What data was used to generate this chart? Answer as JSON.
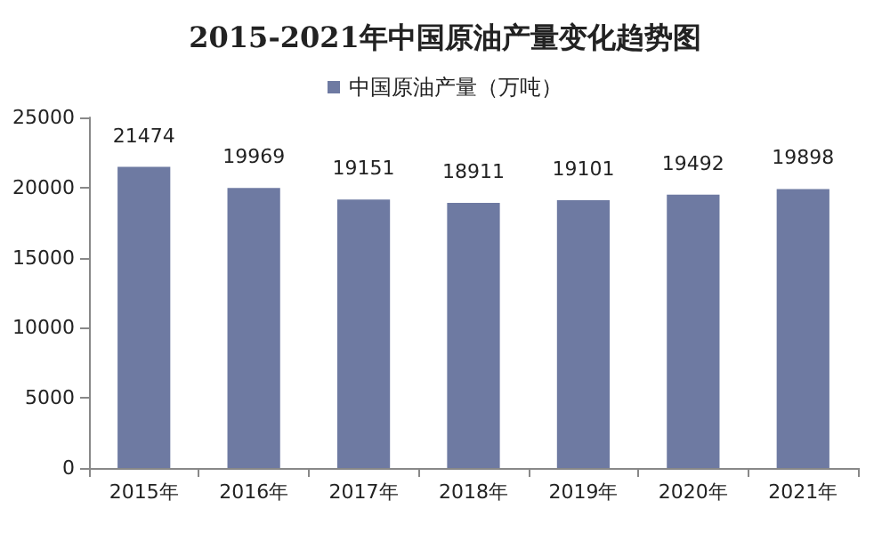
{
  "chart_data": {
    "type": "bar",
    "title": "2015-2021年中国原油产量变化趋势图",
    "categories": [
      "2015年",
      "2016年",
      "2017年",
      "2018年",
      "2019年",
      "2020年",
      "2021年"
    ],
    "series": [
      {
        "name": "中国原油产量（万吨）",
        "color": "#6e7aa2",
        "values": [
          21474,
          19969,
          19151,
          18911,
          19101,
          19492,
          19898
        ]
      }
    ],
    "ylim": [
      0,
      25000
    ],
    "yticks": [
      0,
      5000,
      10000,
      15000,
      20000,
      25000
    ],
    "data_labels": true,
    "legend": "top",
    "grid": false
  }
}
